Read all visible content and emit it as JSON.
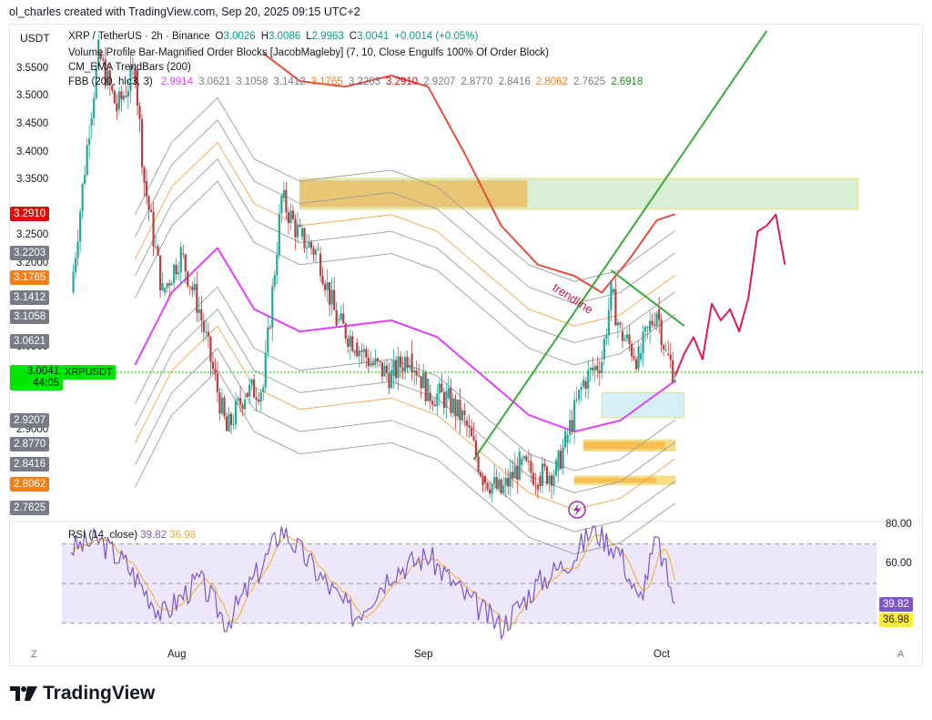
{
  "header": {
    "credit": "ol_charles created with TradingView.com, Sep 20, 2025 09:15 UTC+2"
  },
  "chart": {
    "unit": "USDT",
    "symbol_line": {
      "symbol": "XRP / TetherUS · 2h · Binance",
      "o_label": "O",
      "o": "3.0026",
      "h_label": "H",
      "h": "3.0086",
      "l_label": "L",
      "l": "2.9963",
      "c_label": "C",
      "c": "3.0041",
      "change": "+0.0014 (+0.05%)"
    },
    "indicators": [
      "Volume Profile Bar-Magnified Order Blocks [JacobMagleby] (7, 10, Close Engulfs 100% Of Order Block)",
      "CM_EMA TrendBars (200)"
    ],
    "fbb": {
      "label": "FBB (200, hlc3, 3)",
      "values": [
        "2.9914",
        "3.0621",
        "3.1058",
        "3.1412",
        "3.1765",
        "3.2203",
        "3.2910",
        "2.9207",
        "2.8770",
        "2.8416",
        "2.8062",
        "2.7625",
        "2.6918"
      ]
    },
    "price_ticks": [
      "3.5500",
      "3.5000",
      "3.4500",
      "3.4000",
      "3.3500",
      "3.2500",
      "3.2000",
      "3.0500",
      "2.9000"
    ],
    "price_badges": [
      {
        "label": "3.2910",
        "color": "#e00d0d"
      },
      {
        "label": "3.2203",
        "color": "#787b86"
      },
      {
        "label": "3.1765",
        "color": "#f57f17"
      },
      {
        "label": "3.1412",
        "color": "#787b86"
      },
      {
        "label": "3.1058",
        "color": "#787b86"
      },
      {
        "label": "3.0621",
        "color": "#787b86"
      },
      {
        "label": "2.9914",
        "color": "#e040fb"
      },
      {
        "label": "2.9207",
        "color": "#787b86"
      },
      {
        "label": "2.8770",
        "color": "#787b86"
      },
      {
        "label": "2.8416",
        "color": "#787b86"
      },
      {
        "label": "2.8062",
        "color": "#f57f17"
      },
      {
        "label": "2.7625",
        "color": "#787b86"
      }
    ],
    "current_price": {
      "value": "3.0041",
      "countdown": "44:05",
      "tag": "XRPUSDT",
      "color": "#00e600"
    },
    "trendline_label": "trendline",
    "x_ticks": [
      "Aug",
      "Sep",
      "Oct"
    ],
    "corner_left": "Z",
    "corner_right": "A"
  },
  "rsi": {
    "label": "RSI (14, close)",
    "value": "39.82",
    "ma": "36.98",
    "ticks": [
      "80.00",
      "60.00"
    ]
  },
  "chart_data": {
    "type": "candlestick",
    "title": "XRP / TetherUS · 2h · Binance",
    "ylabel": "USDT",
    "ylim": [
      2.74,
      3.63
    ],
    "x_range": [
      "2025-07-15",
      "2025-10-12"
    ],
    "price_path": [
      {
        "date": "2025-07-16",
        "price": 3.15
      },
      {
        "date": "2025-07-18",
        "price": 3.45
      },
      {
        "date": "2025-07-19",
        "price": 3.58
      },
      {
        "date": "2025-07-21",
        "price": 3.48
      },
      {
        "date": "2025-07-23",
        "price": 3.55
      },
      {
        "date": "2025-07-24",
        "price": 3.35
      },
      {
        "date": "2025-07-26",
        "price": 3.15
      },
      {
        "date": "2025-07-28",
        "price": 3.22
      },
      {
        "date": "2025-07-30",
        "price": 3.12
      },
      {
        "date": "2025-08-02",
        "price": 2.9
      },
      {
        "date": "2025-08-04",
        "price": 2.97
      },
      {
        "date": "2025-08-06",
        "price": 2.98
      },
      {
        "date": "2025-08-08",
        "price": 3.32
      },
      {
        "date": "2025-08-10",
        "price": 3.25
      },
      {
        "date": "2025-08-12",
        "price": 3.22
      },
      {
        "date": "2025-08-14",
        "price": 3.1
      },
      {
        "date": "2025-08-16",
        "price": 3.06
      },
      {
        "date": "2025-08-18",
        "price": 3.02
      },
      {
        "date": "2025-08-20",
        "price": 3.0
      },
      {
        "date": "2025-08-22",
        "price": 3.04
      },
      {
        "date": "2025-08-24",
        "price": 2.97
      },
      {
        "date": "2025-08-26",
        "price": 2.96
      },
      {
        "date": "2025-08-28",
        "price": 2.92
      },
      {
        "date": "2025-08-30",
        "price": 2.82
      },
      {
        "date": "2025-09-01",
        "price": 2.79
      },
      {
        "date": "2025-09-03",
        "price": 2.84
      },
      {
        "date": "2025-09-05",
        "price": 2.82
      },
      {
        "date": "2025-09-07",
        "price": 2.83
      },
      {
        "date": "2025-09-08",
        "price": 2.88
      },
      {
        "date": "2025-09-10",
        "price": 2.99
      },
      {
        "date": "2025-09-12",
        "price": 3.03
      },
      {
        "date": "2025-09-13",
        "price": 3.15
      },
      {
        "date": "2025-09-14",
        "price": 3.08
      },
      {
        "date": "2025-09-16",
        "price": 3.03
      },
      {
        "date": "2025-09-17",
        "price": 3.08
      },
      {
        "date": "2025-09-18",
        "price": 3.12
      },
      {
        "date": "2025-09-19",
        "price": 3.04
      },
      {
        "date": "2025-09-20",
        "price": 3.0041
      }
    ],
    "fbb_basis_path": [
      {
        "date": "2025-07-23",
        "price": 3.02
      },
      {
        "date": "2025-07-27",
        "price": 3.15
      },
      {
        "date": "2025-08-01",
        "price": 3.23
      },
      {
        "date": "2025-08-05",
        "price": 3.12
      },
      {
        "date": "2025-08-10",
        "price": 3.08
      },
      {
        "date": "2025-08-15",
        "price": 3.09
      },
      {
        "date": "2025-08-20",
        "price": 3.1
      },
      {
        "date": "2025-08-25",
        "price": 3.07
      },
      {
        "date": "2025-08-30",
        "price": 3.0
      },
      {
        "date": "2025-09-04",
        "price": 2.93
      },
      {
        "date": "2025-09-09",
        "price": 2.9
      },
      {
        "date": "2025-09-14",
        "price": 2.92
      },
      {
        "date": "2025-09-20",
        "price": 2.9914
      }
    ],
    "fbb_upper_path": [
      {
        "date": "2025-08-06",
        "price": 3.58
      },
      {
        "date": "2025-08-10",
        "price": 3.53
      },
      {
        "date": "2025-08-15",
        "price": 3.52
      },
      {
        "date": "2025-08-20",
        "price": 3.54
      },
      {
        "date": "2025-08-24",
        "price": 3.52
      },
      {
        "date": "2025-08-28",
        "price": 3.4
      },
      {
        "date": "2025-09-01",
        "price": 3.27
      },
      {
        "date": "2025-09-05",
        "price": 3.2
      },
      {
        "date": "2025-09-09",
        "price": 3.18
      },
      {
        "date": "2025-09-12",
        "price": 3.15
      },
      {
        "date": "2025-09-15",
        "price": 3.21
      },
      {
        "date": "2025-09-18",
        "price": 3.28
      },
      {
        "date": "2025-09-20",
        "price": 3.291
      }
    ],
    "projection_path": [
      {
        "date": "2025-09-20",
        "price": 3.0
      },
      {
        "date": "2025-09-21",
        "price": 3.04
      },
      {
        "date": "2025-09-22",
        "price": 3.07
      },
      {
        "date": "2025-09-23",
        "price": 3.03
      },
      {
        "date": "2025-09-24",
        "price": 3.13
      },
      {
        "date": "2025-09-25",
        "price": 3.1
      },
      {
        "date": "2025-09-26",
        "price": 3.12
      },
      {
        "date": "2025-09-27",
        "price": 3.08
      },
      {
        "date": "2025-09-28",
        "price": 3.14
      },
      {
        "date": "2025-09-29",
        "price": 3.26
      },
      {
        "date": "2025-09-30",
        "price": 3.27
      },
      {
        "date": "2025-10-01",
        "price": 3.29
      },
      {
        "date": "2025-10-02",
        "price": 3.2
      }
    ],
    "green_trendline": [
      {
        "date": "2025-08-29",
        "price": 2.85
      },
      {
        "date": "2025-09-30",
        "price": 3.62
      }
    ],
    "resistance_trendline": [
      {
        "date": "2025-09-13",
        "price": 3.19
      },
      {
        "date": "2025-09-21",
        "price": 3.09
      }
    ],
    "zones": [
      {
        "name": "supply",
        "from": "2025-08-10",
        "to": "2025-10-10",
        "low": 3.3,
        "high": 3.355
      },
      {
        "name": "demand",
        "from": "2025-09-12",
        "to": "2025-09-21",
        "low": 2.925,
        "high": 2.97
      },
      {
        "name": "order-block-1",
        "from": "2025-09-10",
        "to": "2025-09-20",
        "low": 2.865,
        "high": 2.885
      },
      {
        "name": "order-block-2",
        "from": "2025-09-09",
        "to": "2025-09-20",
        "low": 2.805,
        "high": 2.82
      }
    ],
    "rsi": {
      "ylim": [
        20,
        80
      ],
      "bands": [
        70,
        50,
        30
      ],
      "path": [
        {
          "date": "2025-07-16",
          "value": 68
        },
        {
          "date": "2025-07-19",
          "value": 72
        },
        {
          "date": "2025-07-22",
          "value": 60
        },
        {
          "date": "2025-07-26",
          "value": 34
        },
        {
          "date": "2025-07-30",
          "value": 52
        },
        {
          "date": "2025-08-02",
          "value": 30
        },
        {
          "date": "2025-08-06",
          "value": 60
        },
        {
          "date": "2025-08-08",
          "value": 78
        },
        {
          "date": "2025-08-12",
          "value": 55
        },
        {
          "date": "2025-08-16",
          "value": 33
        },
        {
          "date": "2025-08-20",
          "value": 56
        },
        {
          "date": "2025-08-24",
          "value": 64
        },
        {
          "date": "2025-08-28",
          "value": 44
        },
        {
          "date": "2025-09-01",
          "value": 28
        },
        {
          "date": "2025-09-05",
          "value": 50
        },
        {
          "date": "2025-09-09",
          "value": 64
        },
        {
          "date": "2025-09-11",
          "value": 78
        },
        {
          "date": "2025-09-14",
          "value": 66
        },
        {
          "date": "2025-09-16",
          "value": 40
        },
        {
          "date": "2025-09-18",
          "value": 72
        },
        {
          "date": "2025-09-20",
          "value": 39.82
        }
      ]
    }
  }
}
